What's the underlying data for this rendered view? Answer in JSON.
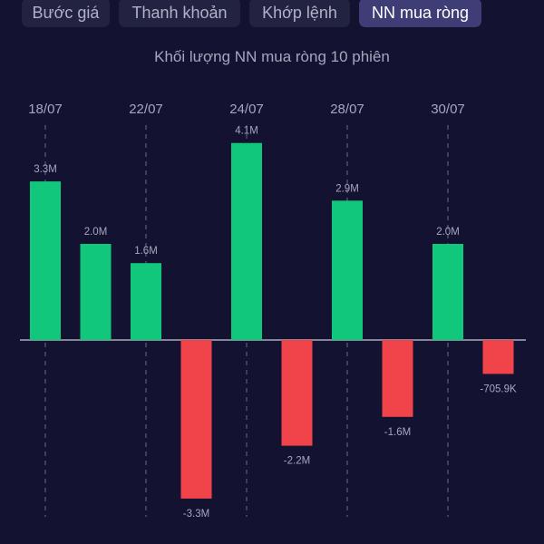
{
  "tabs": [
    {
      "label": "Bước giá",
      "active": false
    },
    {
      "label": "Thanh khoản",
      "active": false
    },
    {
      "label": "Khớp lệnh",
      "active": false
    },
    {
      "label": "NN mua ròng",
      "active": true
    }
  ],
  "colors": {
    "background": "#131331",
    "positive": "#10c77b",
    "negative": "#f0434a",
    "text": "#a6a6bd",
    "active_tab": "#3e3d76"
  },
  "chart_data": {
    "type": "bar",
    "title": "Khối lượng NN mua ròng 10 phiên",
    "xlabel": "",
    "ylabel": "",
    "x_tick_labels": [
      "18/07",
      "22/07",
      "24/07",
      "28/07",
      "30/07"
    ],
    "x_tick_bar_index": [
      0,
      2,
      4,
      6,
      8
    ],
    "values": [
      3.3,
      2.0,
      1.6,
      -3.3,
      4.1,
      -2.2,
      2.9,
      -1.6,
      2.0,
      -0.7059
    ],
    "value_labels": [
      "3.3M",
      "2.0M",
      "1.6M",
      "-3.3M",
      "4.1M",
      "-2.2M",
      "2.9M",
      "-1.6M",
      "2.0M",
      "-705.9K"
    ],
    "unit": "millions of shares",
    "ylim": [
      -3.7,
      4.6
    ],
    "grid": "vertical dashed lines at labeled ticks",
    "legend": "none"
  }
}
